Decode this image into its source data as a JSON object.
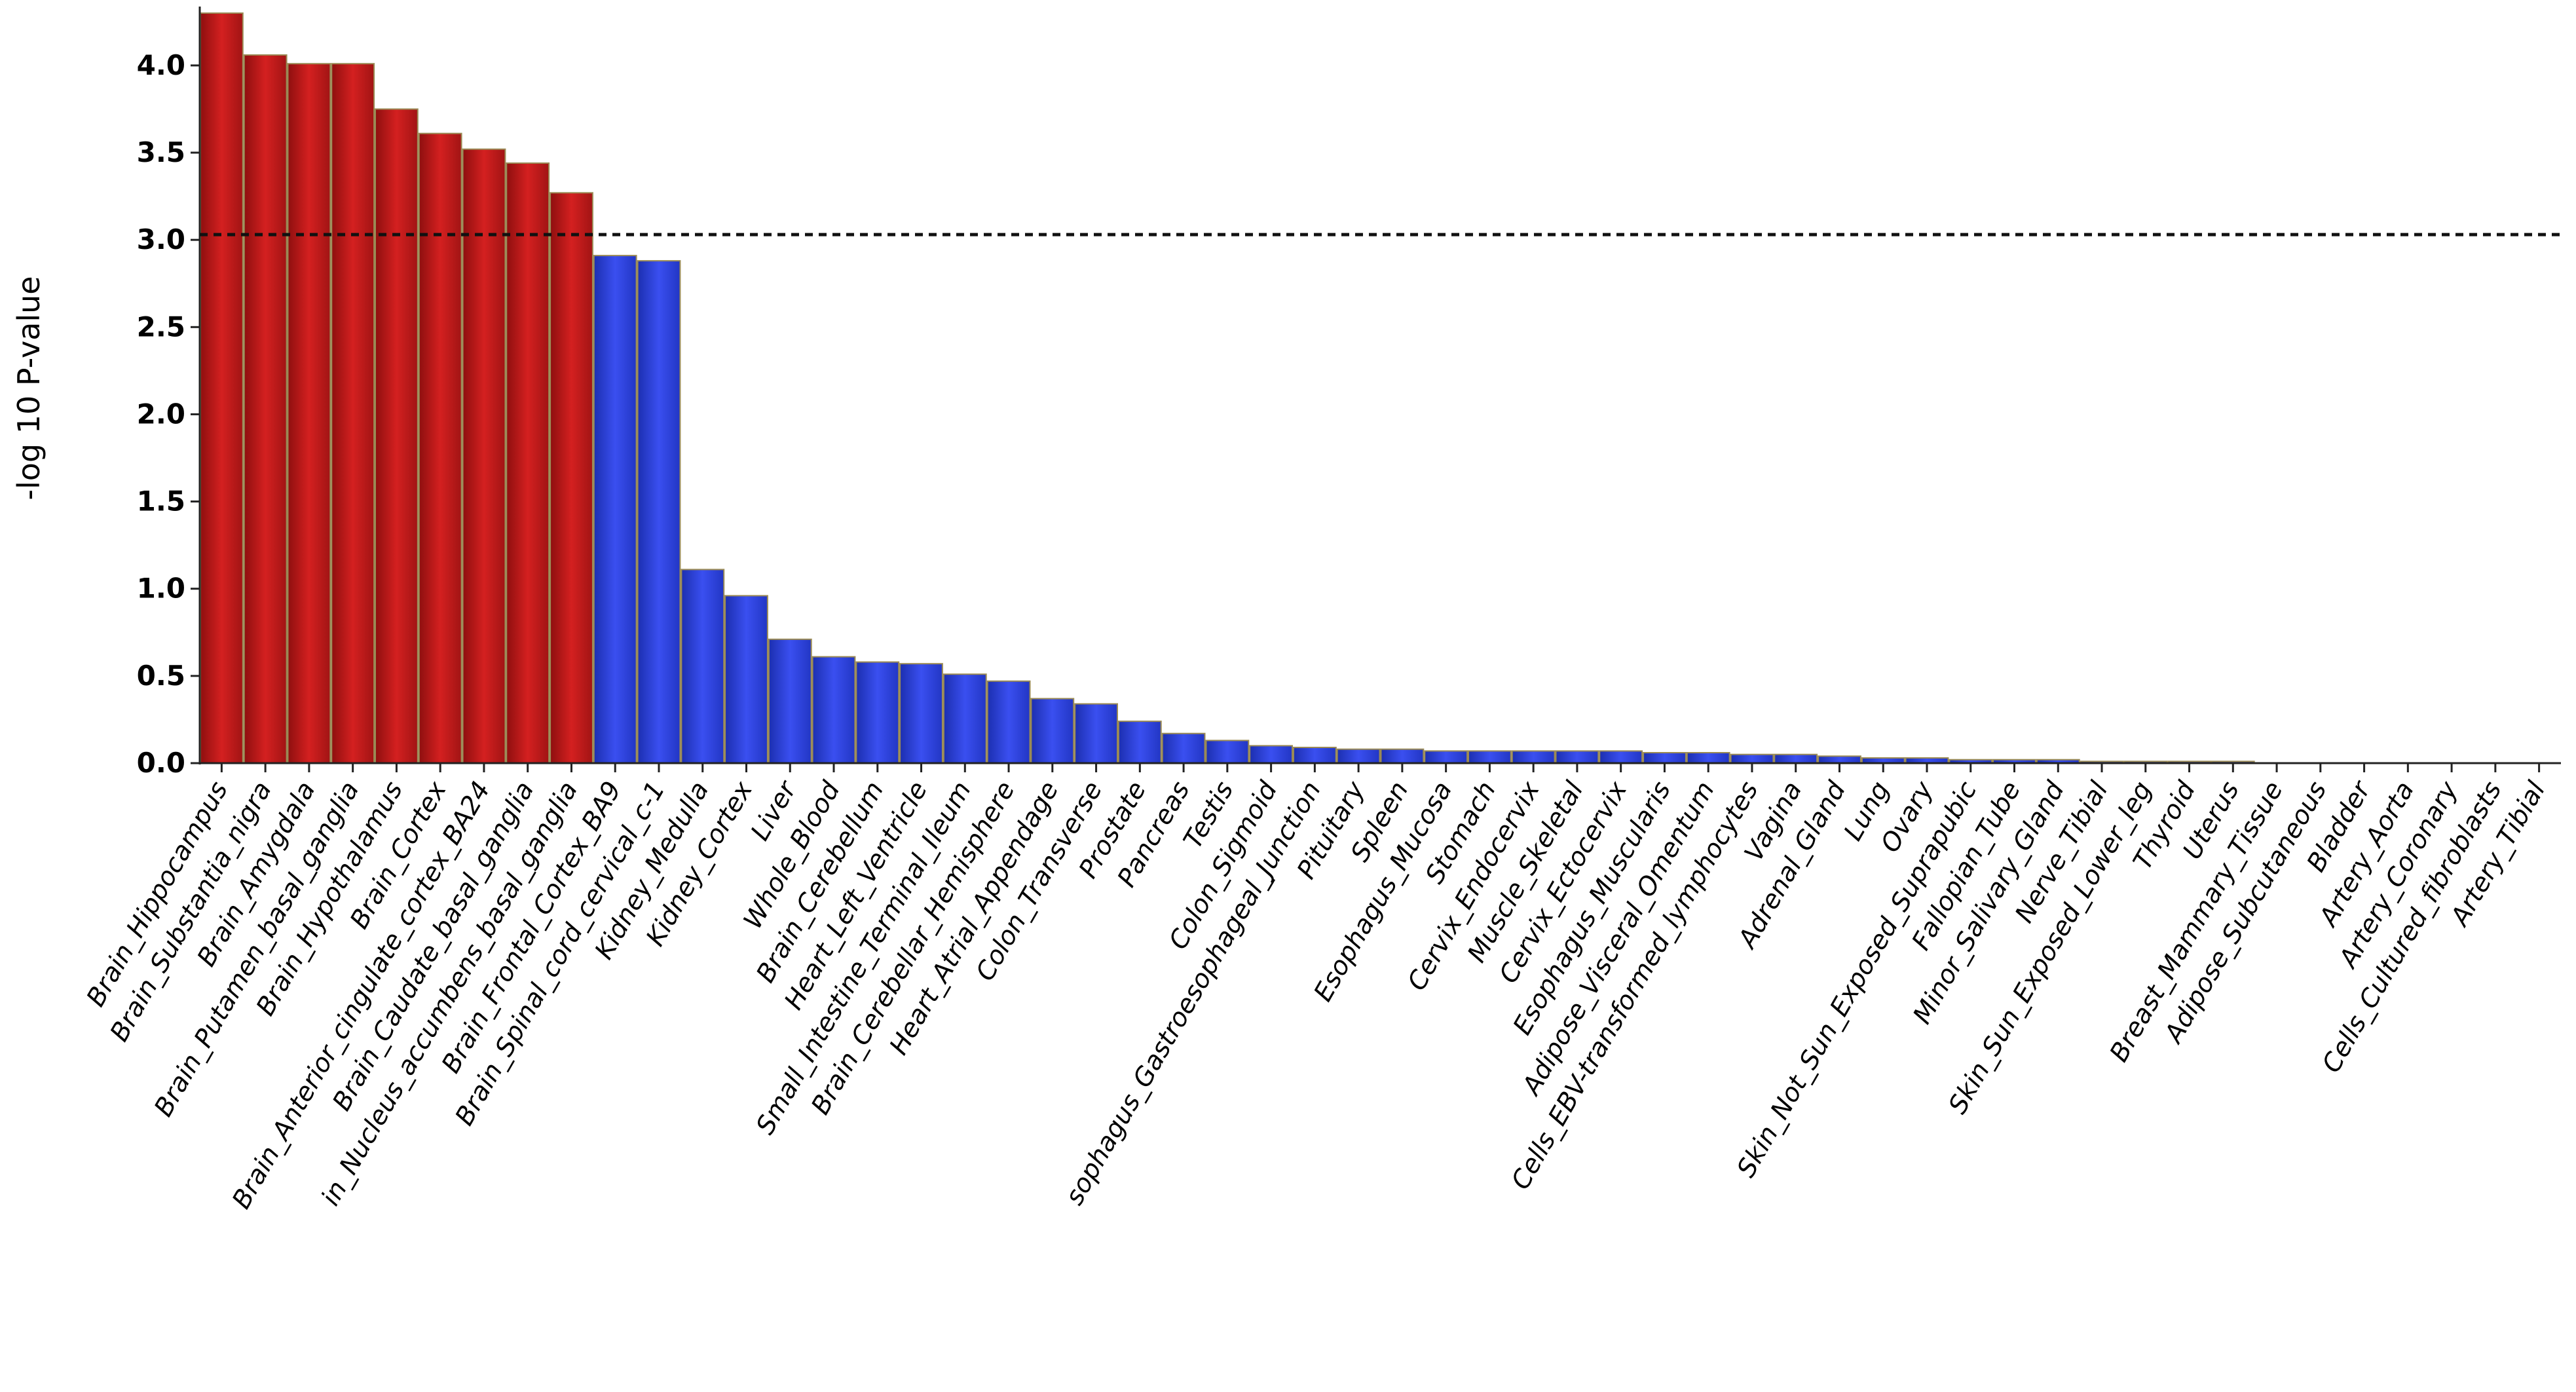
{
  "chart_data": {
    "type": "bar",
    "xlabel": "",
    "ylabel": "-log 10 P-value",
    "ylim": [
      0,
      4.3
    ],
    "yticks": [
      "0.0",
      "0.5",
      "1.0",
      "1.5",
      "2.0",
      "2.5",
      "3.0",
      "3.5",
      "4.0"
    ],
    "threshold": 3.03,
    "significant_color": "#c21a1a",
    "nonsignificant_color": "#2a3fd6",
    "edge_color": "#9a8a55",
    "categories": [
      "Brain_Hippocampus",
      "Brain_Substantia_nigra",
      "Brain_Amygdala",
      "Brain_Putamen_basal_ganglia",
      "Brain_Hypothalamus",
      "Brain_Cortex",
      "Brain_Anterior_cingulate_cortex_BA24",
      "Brain_Caudate_basal_ganglia",
      "in_Nucleus_accumbens_basal_ganglia",
      "Brain_Frontal_Cortex_BA9",
      "Brain_Spinal_cord_cervical_c-1",
      "Kidney_Medulla",
      "Kidney_Cortex",
      "Liver",
      "Whole_Blood",
      "Brain_Cerebellum",
      "Heart_Left_Ventricle",
      "Small_Intestine_Terminal_Ileum",
      "Brain_Cerebellar_Hemisphere",
      "Heart_Atrial_Appendage",
      "Colon_Transverse",
      "Prostate",
      "Pancreas",
      "Testis",
      "Colon_Sigmoid",
      "sophagus_Gastroesophageal_Junction",
      "Pituitary",
      "Spleen",
      "Esophagus_Mucosa",
      "Stomach",
      "Cervix_Endocervix",
      "Muscle_Skeletal",
      "Cervix_Ectocervix",
      "Esophagus_Muscularis",
      "Adipose_Visceral_Omentum",
      "Cells_EBV-transformed_lymphocytes",
      "Vagina",
      "Adrenal_Gland",
      "Lung",
      "Ovary",
      "Skin_Not_Sun_Exposed_Suprapubic",
      "Fallopian_Tube",
      "Minor_Salivary_Gland",
      "Nerve_Tibial",
      "Skin_Sun_Exposed_Lower_leg",
      "Thyroid",
      "Uterus",
      "Breast_Mammary_Tissue",
      "Adipose_Subcutaneous",
      "Bladder",
      "Artery_Aorta",
      "Artery_Coronary",
      "Cells_Cultured_fibroblasts",
      "Artery_Tibial"
    ],
    "values": [
      4.3,
      4.06,
      4.01,
      4.01,
      3.75,
      3.61,
      3.52,
      3.44,
      3.27,
      2.91,
      2.88,
      1.11,
      0.96,
      0.71,
      0.61,
      0.58,
      0.57,
      0.51,
      0.47,
      0.37,
      0.34,
      0.24,
      0.17,
      0.13,
      0.1,
      0.09,
      0.08,
      0.08,
      0.07,
      0.07,
      0.07,
      0.07,
      0.07,
      0.06,
      0.06,
      0.05,
      0.05,
      0.04,
      0.03,
      0.03,
      0.02,
      0.02,
      0.02,
      0.01,
      0.01,
      0.01,
      0.01,
      0.0,
      0.0,
      0.0,
      0.0,
      0.0,
      0.0,
      0.0
    ],
    "significant": [
      true,
      true,
      true,
      true,
      true,
      true,
      true,
      true,
      true,
      false,
      false,
      false,
      false,
      false,
      false,
      false,
      false,
      false,
      false,
      false,
      false,
      false,
      false,
      false,
      false,
      false,
      false,
      false,
      false,
      false,
      false,
      false,
      false,
      false,
      false,
      false,
      false,
      false,
      false,
      false,
      false,
      false,
      false,
      false,
      false,
      false,
      false,
      false,
      false,
      false,
      false,
      false,
      false,
      false
    ]
  }
}
